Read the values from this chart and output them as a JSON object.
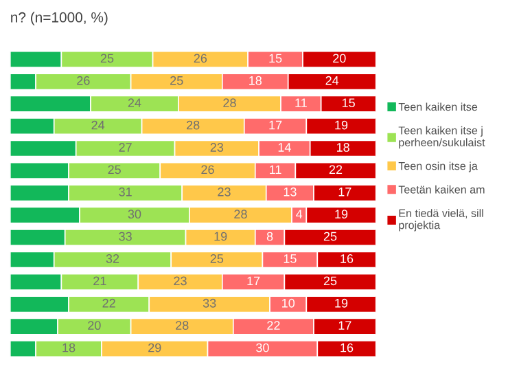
{
  "chart_data": {
    "type": "bar",
    "orientation": "horizontal",
    "stacked": true,
    "title": "n? (n=1000, %)",
    "categories": [
      null,
      null,
      null,
      null,
      null,
      null,
      null,
      null,
      null,
      null,
      null,
      null,
      null,
      null
    ],
    "series": [
      {
        "name": "Teen kaiken itse",
        "color": "#12b85a",
        "values": [
          14,
          7,
          22,
          12,
          18,
          16,
          16,
          19,
          15,
          12,
          14,
          16,
          13,
          7
        ],
        "value_labels": [
          null,
          null,
          null,
          null,
          null,
          null,
          null,
          null,
          null,
          null,
          null,
          null,
          null,
          null
        ]
      },
      {
        "name": "Teen kaiken itse j\nperheen/sukulaist",
        "color": "#9de354",
        "values": [
          25,
          26,
          24,
          24,
          27,
          25,
          31,
          30,
          33,
          32,
          21,
          22,
          20,
          18
        ]
      },
      {
        "name": "Teen osin itse ja",
        "color": "#ffc84a",
        "values": [
          26,
          25,
          28,
          28,
          23,
          26,
          23,
          28,
          19,
          25,
          23,
          33,
          28,
          29
        ]
      },
      {
        "name": "Teetän kaiken am",
        "color": "#ff6b6b",
        "values": [
          15,
          18,
          11,
          17,
          14,
          11,
          13,
          4,
          8,
          15,
          17,
          10,
          22,
          30
        ]
      },
      {
        "name": "En tiedä vielä, sill\nprojektia",
        "color": "#d40000",
        "values": [
          20,
          24,
          15,
          19,
          18,
          22,
          17,
          19,
          25,
          16,
          25,
          19,
          17,
          16
        ]
      }
    ],
    "data_labels": true,
    "legend": "right",
    "grid": false
  }
}
